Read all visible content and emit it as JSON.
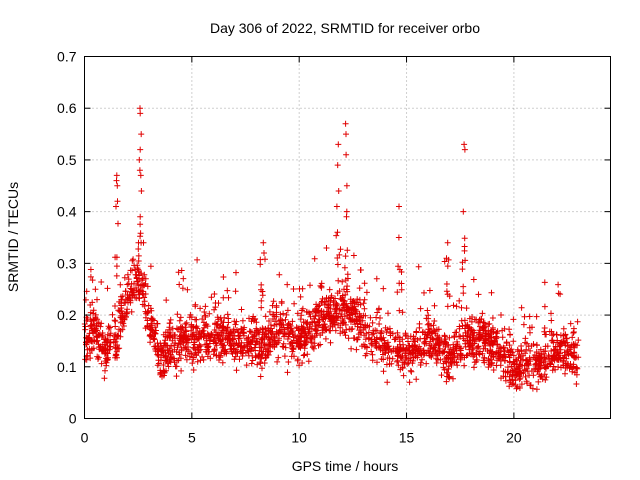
{
  "chart_data": {
    "type": "scatter",
    "title": "Day 306 of 2022, SRMTID for receiver orbo",
    "xlabel": "GPS time / hours",
    "ylabel": "SRMTID / TECUs",
    "xlim": [
      0,
      24.5
    ],
    "ylim": [
      0,
      0.7
    ],
    "xticks": [
      0,
      5,
      10,
      15,
      20
    ],
    "yticks": [
      0,
      0.1,
      0.2,
      0.3,
      0.4,
      0.5,
      0.6,
      0.7
    ],
    "ytick_labels": [
      "0",
      "0.1",
      "0.2",
      "0.3",
      "0.4",
      "0.5",
      "0.6",
      "0.7"
    ],
    "grid": true,
    "marker": "+",
    "color": "#e00000",
    "x_range_of_data": [
      0,
      23
    ],
    "level_profile": [
      [
        0,
        0.16
      ],
      [
        0.5,
        0.17
      ],
      [
        1,
        0.13
      ],
      [
        1.5,
        0.16
      ],
      [
        2,
        0.24
      ],
      [
        2.5,
        0.27
      ],
      [
        3,
        0.2
      ],
      [
        3.5,
        0.12
      ],
      [
        4,
        0.14
      ],
      [
        5,
        0.15
      ],
      [
        6,
        0.16
      ],
      [
        7,
        0.15
      ],
      [
        8,
        0.14
      ],
      [
        9,
        0.17
      ],
      [
        10,
        0.15
      ],
      [
        11,
        0.19
      ],
      [
        12,
        0.21
      ],
      [
        12.5,
        0.2
      ],
      [
        13,
        0.17
      ],
      [
        14,
        0.14
      ],
      [
        15,
        0.13
      ],
      [
        16,
        0.15
      ],
      [
        17,
        0.12
      ],
      [
        18,
        0.16
      ],
      [
        19,
        0.14
      ],
      [
        20,
        0.1
      ],
      [
        21,
        0.1
      ],
      [
        22,
        0.13
      ],
      [
        23,
        0.12
      ]
    ],
    "spikes": [
      {
        "x": 1.5,
        "values": [
          0.47,
          0.46,
          0.45,
          0.42,
          0.41
        ]
      },
      {
        "x": 2.6,
        "values": [
          0.6,
          0.59,
          0.55,
          0.52,
          0.5,
          0.48,
          0.47,
          0.44,
          0.39
        ]
      },
      {
        "x": 11.8,
        "values": [
          0.53,
          0.49,
          0.44,
          0.41,
          0.36
        ]
      },
      {
        "x": 12.2,
        "values": [
          0.57,
          0.55,
          0.51,
          0.45,
          0.4,
          0.39
        ]
      },
      {
        "x": 14.7,
        "values": [
          0.41,
          0.35
        ]
      },
      {
        "x": 17.7,
        "values": [
          0.53,
          0.52,
          0.4
        ]
      },
      {
        "x": 16.9,
        "values": [
          0.34,
          0.31
        ]
      },
      {
        "x": 8.3,
        "values": [
          0.34,
          0.32
        ]
      }
    ]
  }
}
